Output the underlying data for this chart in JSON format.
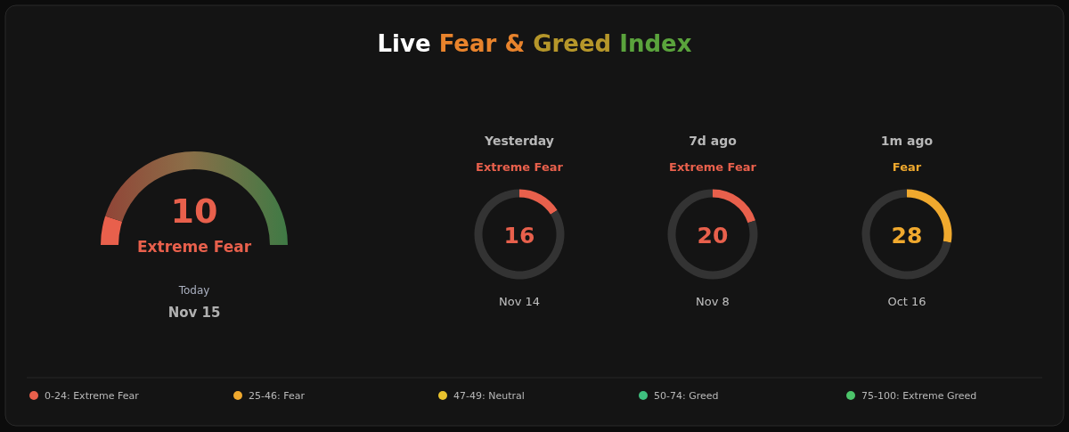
{
  "chart_data": [
    {
      "type": "donut",
      "title": "Live Fear & Greed Index",
      "subtitle": "Today",
      "categories": [
        null,
        null
      ],
      "values": [
        10,
        90
      ],
      "colors": [
        "#e8604c",
        "#3f7a45"
      ],
      "annotations": [
        "10",
        "Extreme Fear",
        "Nov 15"
      ]
    },
    {
      "type": "donut",
      "title": "Yesterday",
      "categories": [
        "Extreme Fear",
        null
      ],
      "values": [
        16,
        84
      ],
      "colors": [
        "#e8604c",
        "#333333"
      ],
      "annotations": [
        "16",
        "Nov 14"
      ]
    },
    {
      "type": "donut",
      "title": "7d ago",
      "categories": [
        "Extreme Fear",
        null
      ],
      "values": [
        20,
        80
      ],
      "colors": [
        "#e8604c",
        "#333333"
      ],
      "annotations": [
        "20",
        "Nov 8"
      ]
    },
    {
      "type": "donut",
      "title": "1m ago",
      "categories": [
        "Fear",
        null
      ],
      "values": [
        28,
        72
      ],
      "colors": [
        "#f0a92e",
        "#333333"
      ],
      "annotations": [
        "28",
        "Oct 16"
      ]
    },
    {
      "type": "other",
      "annotations": [
        "0-24: Extreme Fear",
        "25-46: Fear",
        "47-49: Neutral",
        "50-74: Greed",
        "75-100: Extreme Greed"
      ],
      "colors": [
        "#e8604c",
        "#f0a92e",
        "#e8c22e",
        "#3fbf7f",
        "#4cc46a"
      ]
    }
  ]
}
